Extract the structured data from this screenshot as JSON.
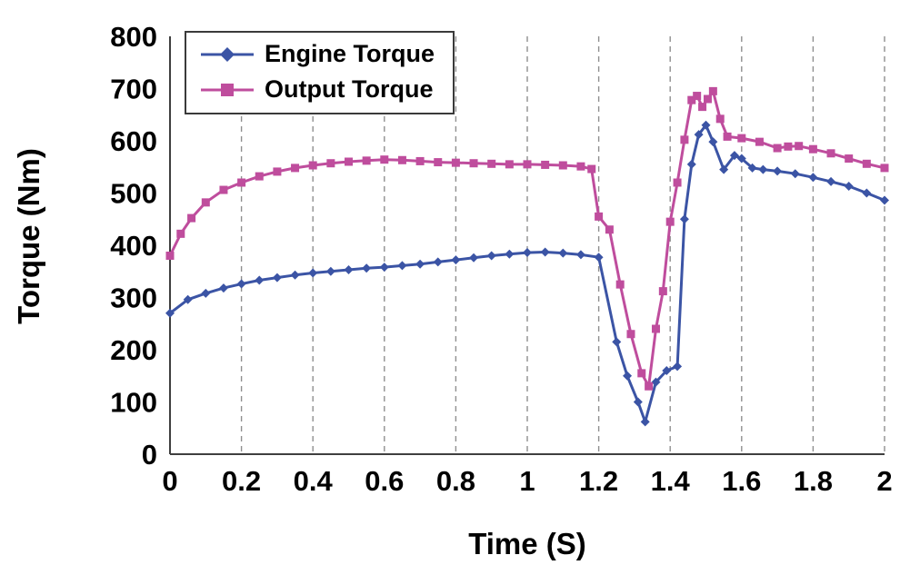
{
  "figure": {
    "background": "#ffffff",
    "text_color": "#000000",
    "gridline_color": "#8f8f8f",
    "axis_color": "#3f3f3f"
  },
  "chart_data": {
    "type": "line",
    "title": "",
    "xlabel": "Time (S)",
    "ylabel": "Torque (Nm)",
    "xlim": [
      0,
      2
    ],
    "ylim": [
      0,
      800
    ],
    "x_ticks": [
      0,
      0.2,
      0.4,
      0.6,
      0.8,
      1,
      1.2,
      1.4,
      1.6,
      1.8,
      2
    ],
    "x_tick_labels": [
      "0",
      "0.2",
      "0.4",
      "0.6",
      "0.8",
      "1",
      "1.2",
      "1.4",
      "1.6",
      "1.8",
      "2"
    ],
    "y_ticks": [
      0,
      100,
      200,
      300,
      400,
      500,
      600,
      700,
      800
    ],
    "y_tick_labels": [
      "0",
      "100",
      "200",
      "300",
      "400",
      "500",
      "600",
      "700",
      "800"
    ],
    "grid": "vertical-dashed",
    "legend_position": "top-left",
    "series": [
      {
        "name": "Engine Torque",
        "color": "#3b54a5",
        "marker": "diamond",
        "points": [
          [
            0,
            270
          ],
          [
            0.05,
            296
          ],
          [
            0.1,
            308
          ],
          [
            0.15,
            318
          ],
          [
            0.2,
            326
          ],
          [
            0.25,
            333
          ],
          [
            0.3,
            338
          ],
          [
            0.35,
            343
          ],
          [
            0.4,
            347
          ],
          [
            0.45,
            350
          ],
          [
            0.5,
            353
          ],
          [
            0.55,
            356
          ],
          [
            0.6,
            358
          ],
          [
            0.65,
            361
          ],
          [
            0.7,
            364
          ],
          [
            0.75,
            368
          ],
          [
            0.8,
            372
          ],
          [
            0.85,
            376
          ],
          [
            0.9,
            380
          ],
          [
            0.95,
            383
          ],
          [
            1,
            386
          ],
          [
            1.05,
            387
          ],
          [
            1.1,
            385
          ],
          [
            1.15,
            382
          ],
          [
            1.2,
            377
          ],
          [
            1.25,
            215
          ],
          [
            1.28,
            150
          ],
          [
            1.31,
            100
          ],
          [
            1.33,
            62
          ],
          [
            1.36,
            138
          ],
          [
            1.39,
            160
          ],
          [
            1.42,
            168
          ],
          [
            1.44,
            450
          ],
          [
            1.46,
            555
          ],
          [
            1.48,
            612
          ],
          [
            1.5,
            630
          ],
          [
            1.52,
            598
          ],
          [
            1.55,
            545
          ],
          [
            1.58,
            572
          ],
          [
            1.6,
            566
          ],
          [
            1.63,
            548
          ],
          [
            1.66,
            545
          ],
          [
            1.7,
            542
          ],
          [
            1.75,
            537
          ],
          [
            1.8,
            530
          ],
          [
            1.85,
            522
          ],
          [
            1.9,
            513
          ],
          [
            1.95,
            500
          ],
          [
            2,
            486
          ]
        ]
      },
      {
        "name": "Output Torque",
        "color": "#bf4d9d",
        "marker": "square",
        "points": [
          [
            0,
            380
          ],
          [
            0.03,
            422
          ],
          [
            0.06,
            452
          ],
          [
            0.1,
            482
          ],
          [
            0.15,
            506
          ],
          [
            0.2,
            520
          ],
          [
            0.25,
            532
          ],
          [
            0.3,
            541
          ],
          [
            0.35,
            548
          ],
          [
            0.4,
            553
          ],
          [
            0.45,
            557
          ],
          [
            0.5,
            560
          ],
          [
            0.55,
            562
          ],
          [
            0.6,
            564
          ],
          [
            0.65,
            563
          ],
          [
            0.7,
            561
          ],
          [
            0.75,
            559
          ],
          [
            0.8,
            558
          ],
          [
            0.85,
            557
          ],
          [
            0.9,
            556
          ],
          [
            0.95,
            555
          ],
          [
            1,
            555
          ],
          [
            1.05,
            554
          ],
          [
            1.1,
            553
          ],
          [
            1.15,
            551
          ],
          [
            1.18,
            546
          ],
          [
            1.2,
            455
          ],
          [
            1.23,
            430
          ],
          [
            1.26,
            325
          ],
          [
            1.29,
            230
          ],
          [
            1.32,
            155
          ],
          [
            1.34,
            130
          ],
          [
            1.36,
            240
          ],
          [
            1.38,
            312
          ],
          [
            1.4,
            445
          ],
          [
            1.42,
            520
          ],
          [
            1.44,
            602
          ],
          [
            1.46,
            678
          ],
          [
            1.475,
            686
          ],
          [
            1.49,
            665
          ],
          [
            1.505,
            680
          ],
          [
            1.52,
            695
          ],
          [
            1.54,
            642
          ],
          [
            1.56,
            608
          ],
          [
            1.6,
            605
          ],
          [
            1.65,
            598
          ],
          [
            1.7,
            586
          ],
          [
            1.73,
            589
          ],
          [
            1.76,
            590
          ],
          [
            1.8,
            584
          ],
          [
            1.85,
            576
          ],
          [
            1.9,
            566
          ],
          [
            1.95,
            556
          ],
          [
            2,
            548
          ]
        ]
      }
    ]
  }
}
